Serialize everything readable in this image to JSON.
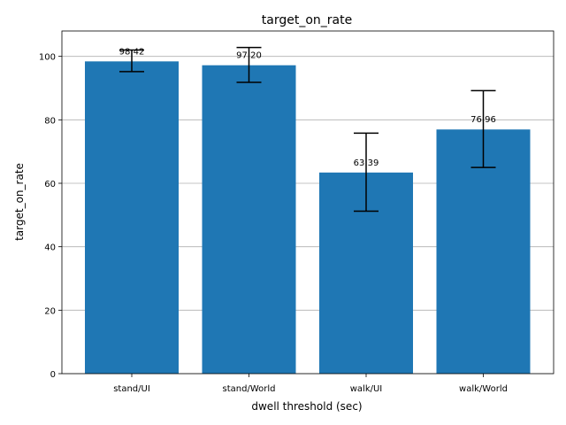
{
  "chart_data": {
    "type": "bar",
    "title": "target_on_rate",
    "xlabel": "dwell threshold (sec)",
    "ylabel": "target_on_rate",
    "categories": [
      "stand/UI",
      "stand/World",
      "walk/UI",
      "walk/World"
    ],
    "values": [
      98.42,
      97.2,
      63.39,
      76.96
    ],
    "value_labels": [
      "98.42",
      "97.20",
      "63.39",
      "76.96"
    ],
    "error_low": [
      95.2,
      91.8,
      51.2,
      65.0
    ],
    "error_high": [
      102.0,
      102.8,
      75.8,
      89.2
    ],
    "ylim": [
      0,
      108
    ],
    "yticks": [
      0,
      20,
      40,
      60,
      80,
      100
    ],
    "ytick_labels": [
      "0",
      "20",
      "40",
      "60",
      "80",
      "100"
    ],
    "grid": "y",
    "bar_color": "#1f77b4",
    "error_color": "#000000"
  }
}
